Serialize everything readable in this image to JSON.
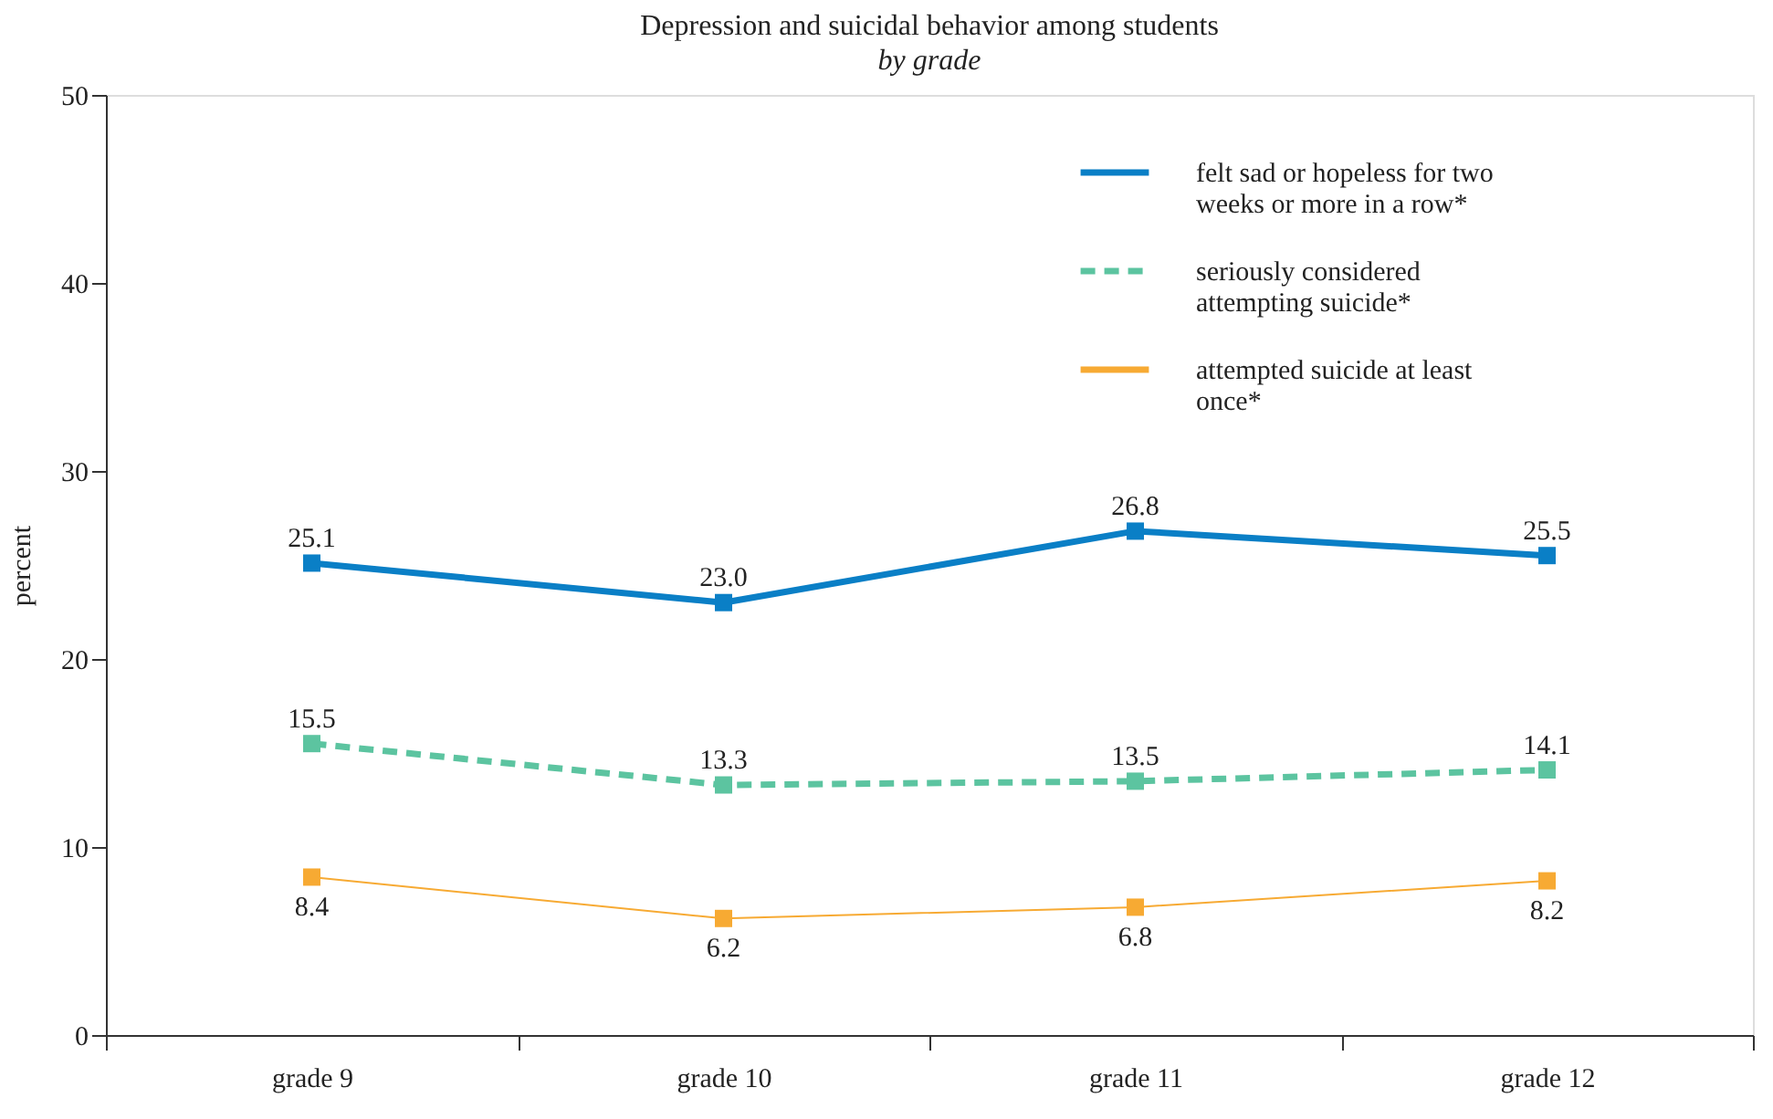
{
  "chart_data": {
    "type": "line",
    "title": "Depression and suicidal behavior among students",
    "subtitle": "by grade",
    "ylabel": "percent",
    "categories": [
      "grade 9",
      "grade 10",
      "grade 11",
      "grade 12"
    ],
    "series": [
      {
        "name": "felt sad or hopeless for two weeks or more in a row*",
        "color": "#0a7fc6",
        "values": [
          25.1,
          23.0,
          26.8,
          25.5
        ],
        "value_labels": [
          "25.1",
          "23.0",
          "26.8",
          "25.5"
        ],
        "line_style": "solid"
      },
      {
        "name": "seriously considered attempting suicide*",
        "color": "#5cc4a0",
        "values": [
          15.5,
          13.3,
          13.5,
          14.1
        ],
        "value_labels": [
          "15.5",
          "13.3",
          "13.5",
          "14.1"
        ],
        "line_style": "dashed"
      },
      {
        "name": "attempted suicide at least once*",
        "color": "#f7aa33",
        "values": [
          8.4,
          6.2,
          6.8,
          8.2
        ],
        "value_labels": [
          "8.4",
          "6.2",
          "6.8",
          "8.2"
        ],
        "line_style": "solid"
      }
    ],
    "ylim": [
      0,
      50
    ],
    "yticks": [
      0,
      10,
      20,
      30,
      40,
      50
    ],
    "grid": false,
    "legend": "top right",
    "marker": "square",
    "data_labels": true
  }
}
